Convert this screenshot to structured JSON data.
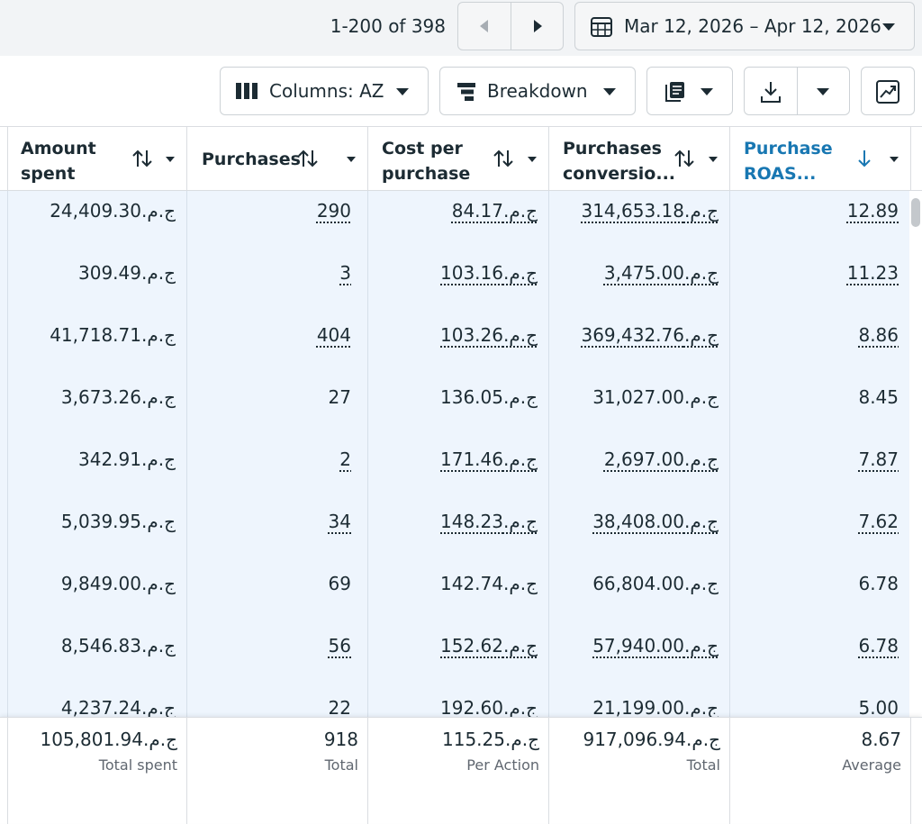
{
  "pagination": {
    "label": "1-200 of 398"
  },
  "date_range": {
    "label": "Mar 12, 2026 – Apr 12, 2026"
  },
  "toolbar": {
    "columns_label": "Columns: AZ",
    "breakdown_label": "Breakdown"
  },
  "columns": [
    {
      "title_line1": "Amount",
      "title_line2": "spent"
    },
    {
      "title_line1": "Purchases",
      "title_line2": ""
    },
    {
      "title_line1": "Cost per",
      "title_line2": "purchase"
    },
    {
      "title_line1": "Purchases",
      "title_line2": "conversio..."
    },
    {
      "title_line1": "Purchase",
      "title_line2": "ROAS..."
    }
  ],
  "rows": [
    {
      "spent": "ج.م.24,409.30",
      "purchases": "290",
      "cost": "ج.م.84.17",
      "value": "ج.م.314,653.18",
      "roas": "12.89"
    },
    {
      "spent": "ج.م.309.49",
      "purchases": "3",
      "cost": "ج.م.103.16",
      "value": "ج.م.3,475.00",
      "roas": "11.23"
    },
    {
      "spent": "ج.م.41,718.71",
      "purchases": "404",
      "cost": "ج.م.103.26",
      "value": "ج.م.369,432.76",
      "roas": "8.86"
    },
    {
      "spent": "ج.م.3,673.26",
      "purchases": "27",
      "cost": "ج.م.136.05",
      "value": "ج.م.31,027.00",
      "roas": "8.45"
    },
    {
      "spent": "ج.م.342.91",
      "purchases": "2",
      "cost": "ج.م.171.46",
      "value": "ج.م.2,697.00",
      "roas": "7.87"
    },
    {
      "spent": "ج.م.5,039.95",
      "purchases": "34",
      "cost": "ج.م.148.23",
      "value": "ج.م.38,408.00",
      "roas": "7.62"
    },
    {
      "spent": "ج.م.9,849.00",
      "purchases": "69",
      "cost": "ج.م.142.74",
      "value": "ج.م.66,804.00",
      "roas": "6.78"
    },
    {
      "spent": "ج.م.8,546.83",
      "purchases": "56",
      "cost": "ج.م.152.62",
      "value": "ج.م.57,940.00",
      "roas": "6.78"
    },
    {
      "spent": "ج.م.4,237.24",
      "purchases": "22",
      "cost": "ج.م.192.60",
      "value": "ج.م.21,199.00",
      "roas": "5.00"
    }
  ],
  "summary": {
    "spent": {
      "value": "ج.م.105,801.94",
      "label": "Total spent"
    },
    "purchases": {
      "value": "918",
      "label": "Total"
    },
    "cost": {
      "value": "ج.م.115.25",
      "label": "Per Action"
    },
    "value": {
      "value": "ج.م.917,096.94",
      "label": "Total"
    },
    "roas": {
      "value": "8.67",
      "label": "Average"
    }
  },
  "colors": {
    "accent": "#1877b2",
    "row_highlight": "#eef5fd",
    "border": "#dadde1"
  }
}
